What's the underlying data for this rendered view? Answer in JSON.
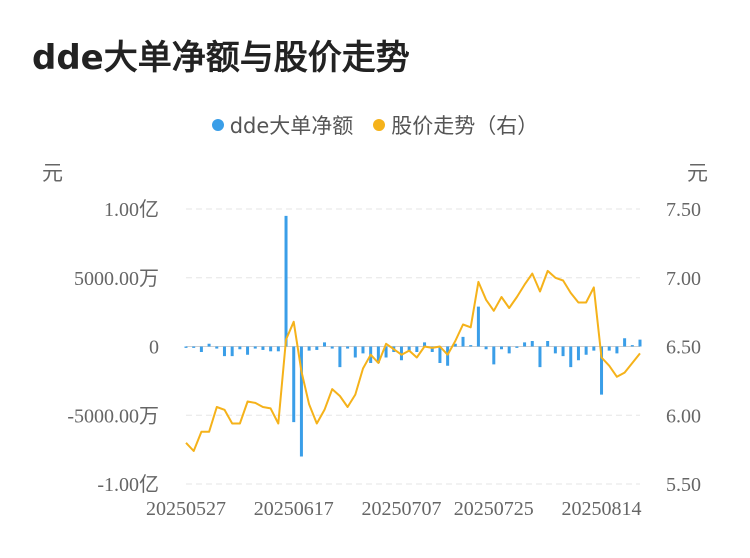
{
  "title": "dde大单净额与股价走势",
  "legend": [
    {
      "label": "dde大单净额",
      "color": "#3a9ee8"
    },
    {
      "label": "股价走势（右）",
      "color": "#f5b21a"
    }
  ],
  "units": {
    "left": "元",
    "right": "元"
  },
  "chart_data": {
    "type": "bar+line",
    "x_tick_labels": [
      "20250527",
      "20250617",
      "20250707",
      "20250725",
      "20250814"
    ],
    "x_tick_index": [
      0,
      14,
      28,
      40,
      54
    ],
    "left_axis": {
      "tick_labels": [
        "1.00亿",
        "5000.00万",
        "0",
        "-5000.00万",
        "-1.00亿"
      ],
      "tick_values": [
        100000000,
        50000000,
        0,
        -50000000,
        -100000000
      ],
      "range": [
        -100000000,
        100000000
      ]
    },
    "right_axis": {
      "tick_labels": [
        "7.50",
        "7.00",
        "6.50",
        "6.00",
        "5.50"
      ],
      "tick_values": [
        7.5,
        7.0,
        6.5,
        6.0,
        5.5
      ],
      "range": [
        5.5,
        7.5
      ]
    },
    "series": [
      {
        "name": "dde大单净额",
        "type": "bar",
        "axis": "left",
        "color": "#3a9ee8",
        "values": [
          -1000000,
          -1000000,
          -4000000,
          2000000,
          -1500000,
          -7000000,
          -7000000,
          -2000000,
          -6000000,
          -1500000,
          -2500000,
          -3500000,
          -3500000,
          95000000,
          -55000000,
          -80000000,
          -3000000,
          -2500000,
          3000000,
          -1500000,
          -15000000,
          -1500000,
          -8000000,
          -5000000,
          -12000000,
          -12000000,
          -8000000,
          -4000000,
          -10000000,
          -4000000,
          -4000000,
          3000000,
          -4000000,
          -12000000,
          -14000000,
          2000000,
          7000000,
          1000000,
          29000000,
          -2000000,
          -13000000,
          -2000000,
          -5000000,
          -1000000,
          3000000,
          4000000,
          -15000000,
          4000000,
          -5000000,
          -7000000,
          -15000000,
          -10000000,
          -6000000,
          -3000000,
          -35000000,
          -3000000,
          -5000000,
          6000000,
          1000000,
          5000000
        ],
        "x_index": [
          0,
          1,
          2,
          3,
          4,
          5,
          6,
          7,
          8,
          9,
          10,
          11,
          12,
          13,
          14,
          15,
          16,
          17,
          18,
          19,
          20,
          21,
          22,
          23,
          24,
          25,
          26,
          27,
          28,
          29,
          30,
          31,
          32,
          33,
          34,
          35,
          36,
          37,
          38,
          39,
          40,
          41,
          42,
          43,
          44,
          45,
          46,
          47,
          48,
          49,
          50,
          51,
          52,
          53,
          54,
          55,
          56,
          57,
          58,
          59
        ]
      },
      {
        "name": "股价走势（右）",
        "type": "line",
        "axis": "right",
        "color": "#f5b21a",
        "values": [
          5.8,
          5.74,
          5.88,
          5.88,
          6.06,
          6.04,
          5.94,
          5.94,
          6.1,
          6.09,
          6.06,
          6.05,
          5.94,
          6.55,
          6.68,
          6.32,
          6.08,
          5.94,
          6.04,
          6.19,
          6.14,
          6.06,
          6.15,
          6.34,
          6.44,
          6.38,
          6.52,
          6.48,
          6.44,
          6.47,
          6.42,
          6.5,
          6.49,
          6.5,
          6.44,
          6.54,
          6.66,
          6.64,
          6.97,
          6.84,
          6.76,
          6.86,
          6.78,
          6.86,
          6.95,
          7.03,
          6.9,
          7.05,
          7.0,
          6.98,
          6.89,
          6.82,
          6.82,
          6.93,
          6.42,
          6.36,
          6.28,
          6.31,
          6.38,
          6.45
        ],
        "x_index": [
          0,
          1,
          2,
          3,
          4,
          5,
          6,
          7,
          8,
          9,
          10,
          11,
          12,
          13,
          14,
          15,
          16,
          17,
          18,
          19,
          20,
          21,
          22,
          23,
          24,
          25,
          26,
          27,
          28,
          29,
          30,
          31,
          32,
          33,
          34,
          35,
          36,
          37,
          38,
          39,
          40,
          41,
          42,
          43,
          44,
          45,
          46,
          47,
          48,
          49,
          50,
          51,
          52,
          53,
          54,
          55,
          56,
          57,
          58,
          59
        ]
      }
    ],
    "grid": true,
    "legend_position": "top-center"
  }
}
